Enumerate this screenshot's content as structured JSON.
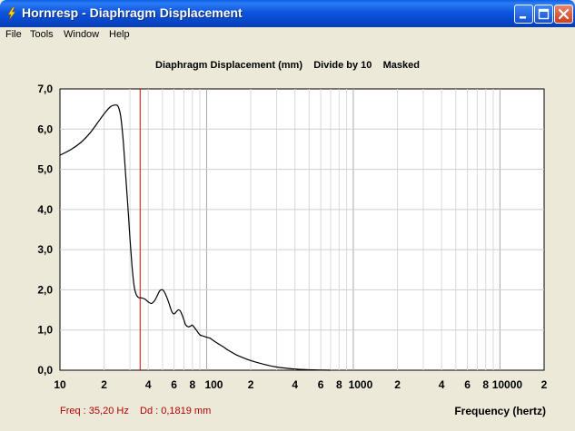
{
  "window": {
    "title": "Hornresp - Diaphragm Displacement",
    "icon": "lightning-bolt-icon"
  },
  "menu": [
    "File",
    "Tools",
    "Window",
    "Help"
  ],
  "readout": {
    "freq": "Freq : 35,20 Hz",
    "dd": "Dd : 0,1819 mm"
  },
  "chart_data": {
    "type": "line",
    "title": "Diaphragm Displacement (mm)    Divide by 10    Masked",
    "xlabel": "Frequency (hertz)",
    "ylabel": "",
    "x_scale": "log",
    "xlim": [
      10,
      20000
    ],
    "ylim": [
      0,
      7
    ],
    "grid": true,
    "y_ticks": [
      "0,0",
      "1,0",
      "2,0",
      "3,0",
      "4,0",
      "5,0",
      "6,0",
      "7,0"
    ],
    "x_ticks": [
      {
        "v": 10,
        "label": "10"
      },
      {
        "v": 20,
        "label": "2"
      },
      {
        "v": 40,
        "label": "4"
      },
      {
        "v": 60,
        "label": "6"
      },
      {
        "v": 80,
        "label": "8"
      },
      {
        "v": 100,
        "label": "100"
      },
      {
        "v": 200,
        "label": "2"
      },
      {
        "v": 400,
        "label": "4"
      },
      {
        "v": 600,
        "label": "6"
      },
      {
        "v": 800,
        "label": "8"
      },
      {
        "v": 1000,
        "label": "1000"
      },
      {
        "v": 2000,
        "label": "2"
      },
      {
        "v": 4000,
        "label": "4"
      },
      {
        "v": 6000,
        "label": "6"
      },
      {
        "v": 8000,
        "label": "8"
      },
      {
        "v": 10000,
        "label": "10000"
      },
      {
        "v": 20000,
        "label": "2"
      }
    ],
    "marker_x": 35.2,
    "series": [
      {
        "color": "#000000",
        "x": [
          10,
          12,
          14,
          16,
          18,
          20,
          22,
          24,
          25,
          26,
          27,
          28,
          29,
          30,
          31,
          32,
          33,
          34,
          35,
          36,
          38,
          40,
          42,
          44,
          46,
          48,
          50,
          52,
          55,
          58,
          60,
          62,
          64,
          66,
          68,
          70,
          72,
          75,
          78,
          80,
          85,
          90,
          95,
          100,
          105,
          110,
          115,
          120,
          130,
          140,
          160,
          180,
          200,
          250,
          300,
          400,
          500,
          600,
          700
        ],
        "values": [
          5.35,
          5.5,
          5.68,
          5.9,
          6.15,
          6.38,
          6.55,
          6.6,
          6.55,
          6.3,
          5.7,
          4.9,
          4.1,
          3.3,
          2.6,
          2.1,
          1.9,
          1.82,
          1.8,
          1.8,
          1.77,
          1.7,
          1.66,
          1.72,
          1.85,
          1.98,
          2.0,
          1.92,
          1.7,
          1.45,
          1.4,
          1.45,
          1.5,
          1.48,
          1.38,
          1.25,
          1.13,
          1.08,
          1.1,
          1.12,
          1.0,
          0.88,
          0.85,
          0.82,
          0.8,
          0.75,
          0.7,
          0.66,
          0.58,
          0.5,
          0.38,
          0.3,
          0.24,
          0.14,
          0.08,
          0.03,
          0.012,
          0.004,
          0.0
        ]
      }
    ]
  }
}
